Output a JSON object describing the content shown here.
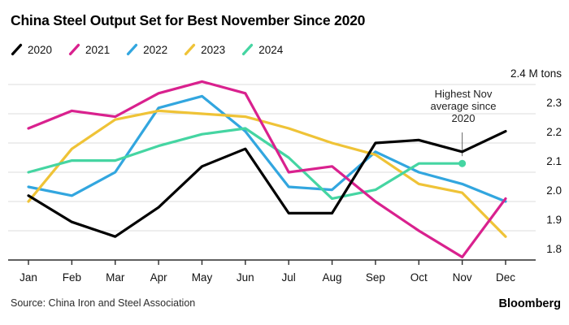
{
  "header": {
    "title": "China Steel Output Set for Best November Since 2020"
  },
  "legend": {
    "items": [
      {
        "label": "2020",
        "color": "#000000"
      },
      {
        "label": "2021",
        "color": "#d9218e"
      },
      {
        "label": "2022",
        "color": "#32a6df"
      },
      {
        "label": "2023",
        "color": "#efc337"
      },
      {
        "label": "2024",
        "color": "#45d5a2"
      }
    ]
  },
  "chart_data": {
    "type": "line",
    "title": "China Steel Output Set for Best November Since 2020",
    "unit_label": "M tons",
    "x_categories": [
      "Jan",
      "Feb",
      "Mar",
      "Apr",
      "May",
      "Jun",
      "Jul",
      "Aug",
      "Sep",
      "Oct",
      "Nov",
      "Dec"
    ],
    "ylim": [
      1.8,
      2.4
    ],
    "yticks": [
      1.8,
      1.9,
      2.0,
      2.1,
      2.2,
      2.3,
      2.4
    ],
    "grid": "horizontal",
    "legend_position": "top-left",
    "series": [
      {
        "name": "2020",
        "color": "#000000",
        "values": [
          2.02,
          1.93,
          1.88,
          1.98,
          2.12,
          2.18,
          1.96,
          1.96,
          2.2,
          2.21,
          2.17,
          2.24
        ]
      },
      {
        "name": "2021",
        "color": "#d9218e",
        "values": [
          2.25,
          2.31,
          2.29,
          2.37,
          2.41,
          2.37,
          2.1,
          2.12,
          2.0,
          1.9,
          1.81,
          2.01
        ]
      },
      {
        "name": "2022",
        "color": "#32a6df",
        "values": [
          2.05,
          2.02,
          2.1,
          2.32,
          2.36,
          2.24,
          2.05,
          2.04,
          2.17,
          2.1,
          2.06,
          2.0
        ]
      },
      {
        "name": "2023",
        "color": "#efc337",
        "values": [
          2.0,
          2.18,
          2.28,
          2.31,
          2.3,
          2.29,
          2.25,
          2.2,
          2.16,
          2.06,
          2.03,
          1.88
        ]
      },
      {
        "name": "2024",
        "color": "#45d5a2",
        "end_dot": true,
        "values": [
          2.1,
          2.14,
          2.14,
          2.19,
          2.23,
          2.25,
          2.15,
          2.01,
          2.04,
          2.13,
          2.13,
          null
        ]
      }
    ]
  },
  "annotation": {
    "lines": [
      "Highest Nov",
      "average since",
      "2020"
    ]
  },
  "footer": {
    "source": "Source: China Iron and Steel Association",
    "brand": "Bloomberg"
  }
}
